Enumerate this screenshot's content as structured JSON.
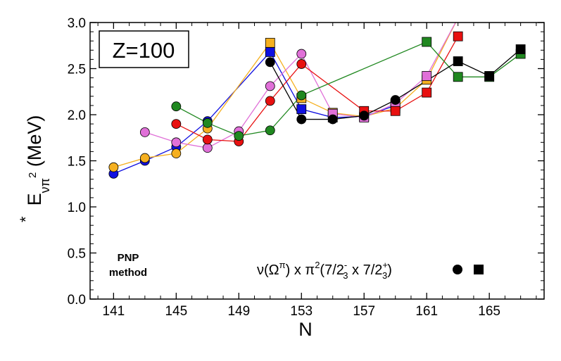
{
  "chart_data": {
    "type": "line",
    "title": "Z=100",
    "annotation": "PNP method",
    "annotation_lines": [
      "PNP",
      "method"
    ],
    "legend_text": "ν(Ω^π) x π²(7/2₃⁻ x 7/2₃⁺)",
    "xlabel": "N",
    "ylabel": "E*νπ² (MeV)",
    "xlim": [
      139.5,
      168.5
    ],
    "ylim": [
      0.0,
      3.0
    ],
    "xticks": [
      141,
      145,
      149,
      153,
      157,
      161,
      165
    ],
    "xtick_labels": [
      "141",
      "145",
      "149",
      "153",
      "157",
      "161",
      "165"
    ],
    "yticks": [
      0.0,
      0.5,
      1.0,
      1.5,
      2.0,
      2.5,
      3.0
    ],
    "ytick_labels": [
      "0.0",
      "0.5",
      "1.0",
      "1.5",
      "2.0",
      "2.5",
      "3.0"
    ],
    "series": [
      {
        "name": "blue",
        "color": "#1010e0",
        "points": [
          [
            141,
            1.36,
            "c"
          ],
          [
            143,
            1.5,
            "c"
          ],
          [
            145,
            1.65,
            "c"
          ],
          [
            147,
            1.93,
            "c"
          ],
          [
            151,
            2.68,
            "s"
          ],
          [
            153,
            2.06,
            "s"
          ],
          [
            155,
            1.97,
            "s"
          ],
          [
            157,
            1.98,
            "s"
          ],
          [
            159,
            2.1,
            "s"
          ]
        ]
      },
      {
        "name": "orange",
        "color": "#f5b020",
        "points": [
          [
            141,
            1.43,
            "c"
          ],
          [
            143,
            1.53,
            "c"
          ],
          [
            145,
            1.58,
            "c"
          ],
          [
            147,
            1.85,
            "c"
          ],
          [
            151,
            2.78,
            "s"
          ],
          [
            153,
            2.18,
            "s"
          ],
          [
            155,
            2.02,
            "s"
          ],
          [
            157,
            1.98,
            "s"
          ],
          [
            159,
            2.07,
            "s"
          ],
          [
            161,
            2.38,
            "s"
          ],
          [
            163,
            3.05,
            "s"
          ]
        ]
      },
      {
        "name": "pink",
        "color": "#e070d8",
        "points": [
          [
            143,
            1.81,
            "c"
          ],
          [
            145,
            1.7,
            "c"
          ],
          [
            147,
            1.64,
            "c"
          ],
          [
            149,
            1.82,
            "c"
          ],
          [
            151,
            2.31,
            "c"
          ],
          [
            153,
            2.66,
            "c"
          ],
          [
            155,
            2.01,
            "s"
          ],
          [
            157,
            1.97,
            "s"
          ],
          [
            159,
            2.12,
            "s"
          ],
          [
            161,
            2.42,
            "s"
          ],
          [
            163,
            3.05,
            "s"
          ]
        ]
      },
      {
        "name": "red",
        "color": "#e81010",
        "points": [
          [
            145,
            1.9,
            "c"
          ],
          [
            147,
            1.73,
            "c"
          ],
          [
            149,
            1.71,
            "c"
          ],
          [
            151,
            2.15,
            "c"
          ],
          [
            153,
            2.55,
            "c"
          ],
          [
            157,
            2.04,
            "s"
          ],
          [
            159,
            2.04,
            "s"
          ],
          [
            161,
            2.24,
            "s"
          ],
          [
            163,
            2.85,
            "s"
          ]
        ]
      },
      {
        "name": "green",
        "color": "#208820",
        "points": [
          [
            145,
            2.09,
            "c"
          ],
          [
            147,
            1.91,
            "c"
          ],
          [
            149,
            1.77,
            "c"
          ],
          [
            151,
            1.83,
            "c"
          ],
          [
            153,
            2.21,
            "c"
          ],
          [
            161,
            2.79,
            "s"
          ],
          [
            163,
            2.41,
            "s"
          ],
          [
            165,
            2.41,
            "s"
          ],
          [
            167,
            2.66,
            "s"
          ]
        ]
      },
      {
        "name": "black",
        "color": "#000000",
        "points": [
          [
            151,
            2.57,
            "c"
          ],
          [
            153,
            1.95,
            "c"
          ],
          [
            155,
            1.95,
            "c"
          ],
          [
            157,
            1.99,
            "c"
          ],
          [
            159,
            2.16,
            "c"
          ],
          [
            163,
            2.58,
            "s"
          ],
          [
            165,
            2.42,
            "s"
          ],
          [
            167,
            2.71,
            "s"
          ]
        ]
      }
    ]
  }
}
